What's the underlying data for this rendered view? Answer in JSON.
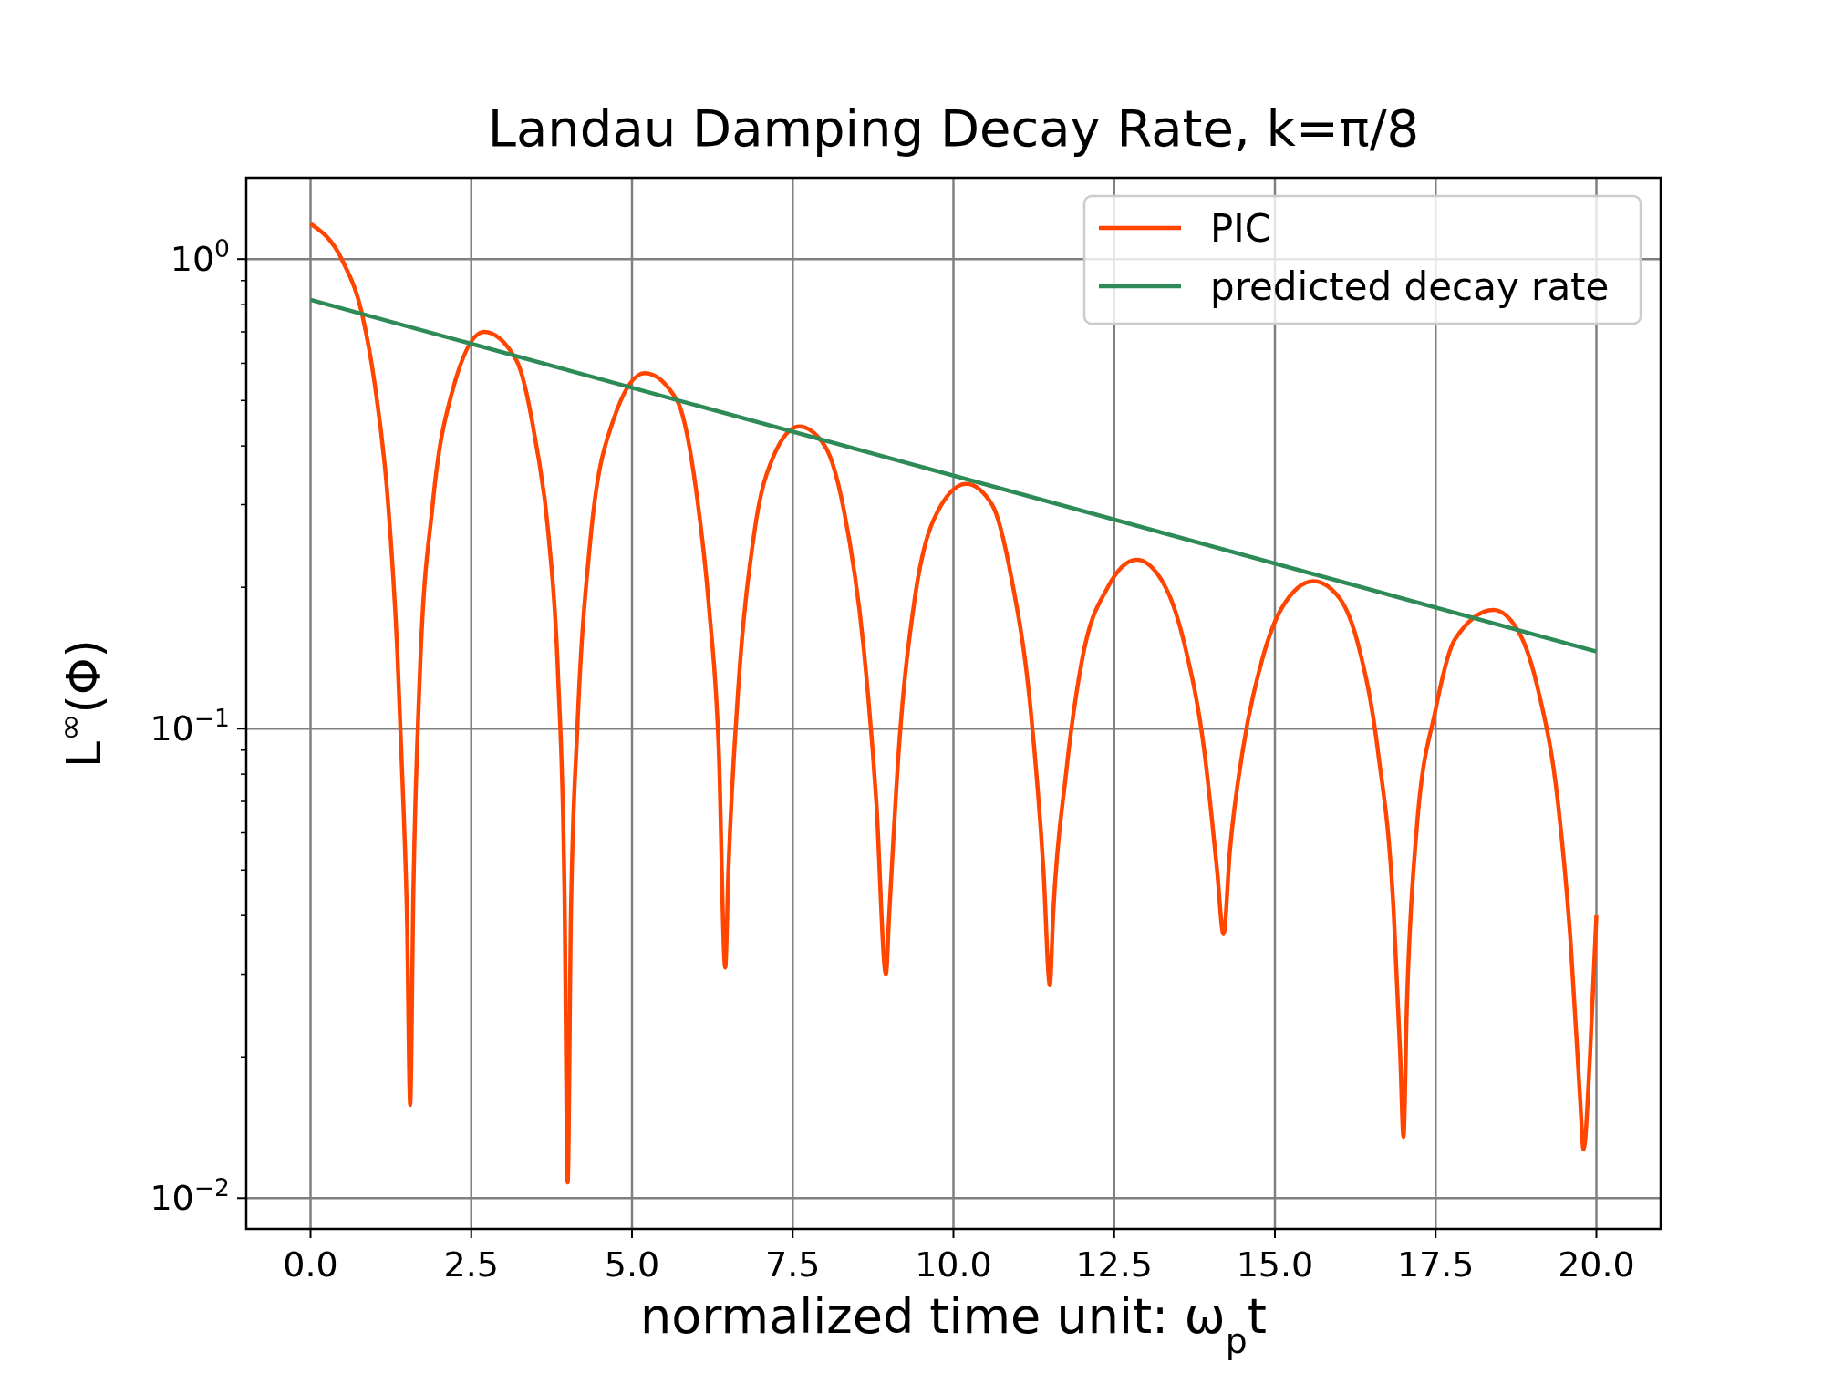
{
  "chart_data": {
    "type": "line",
    "title": "Landau Damping Decay Rate, k=π/8",
    "xlabel": "normalized time unit: ω$_{p}$t",
    "ylabel": "L$^{∞}$(Φ)",
    "log": "y",
    "grid": true,
    "legend": "top right",
    "line_style": "solid",
    "marker": "none",
    "xlim": [
      -1,
      21
    ],
    "xticks": [
      {
        "value": 0,
        "label": "0.0"
      },
      {
        "value": 2.5,
        "label": "2.5"
      },
      {
        "value": 5,
        "label": "5.0"
      },
      {
        "value": 7.5,
        "label": "7.5"
      },
      {
        "value": 10,
        "label": "10.0"
      },
      {
        "value": 12.5,
        "label": "12.5"
      },
      {
        "value": 15,
        "label": "15.0"
      },
      {
        "value": 17.5,
        "label": "17.5"
      },
      {
        "value": 20,
        "label": "20.0"
      }
    ],
    "ylim": [
      0.0086,
      1.49
    ],
    "yticks": [
      {
        "value": 0.01,
        "label": "10$^{−2}$"
      },
      {
        "value": 0.02,
        "label": null
      },
      {
        "value": 0.03,
        "label": null
      },
      {
        "value": 0.04,
        "label": null
      },
      {
        "value": 0.05,
        "label": null
      },
      {
        "value": 0.06,
        "label": null
      },
      {
        "value": 0.07,
        "label": null
      },
      {
        "value": 0.08,
        "label": null
      },
      {
        "value": 0.09,
        "label": null
      },
      {
        "value": 0.1,
        "label": "10$^{−1}$"
      },
      {
        "value": 0.2,
        "label": null
      },
      {
        "value": 0.3,
        "label": null
      },
      {
        "value": 0.4,
        "label": null
      },
      {
        "value": 0.5,
        "label": null
      },
      {
        "value": 0.6,
        "label": null
      },
      {
        "value": 0.7,
        "label": null
      },
      {
        "value": 0.8,
        "label": null
      },
      {
        "value": 0.9,
        "label": null
      },
      {
        "value": 1,
        "label": "10$^{0}$"
      }
    ],
    "series": [
      {
        "name": "PIC",
        "color": "#ff4500",
        "x": [
          0,
          0.5,
          0.8,
          1.0,
          1.2,
          1.35,
          1.45,
          1.5,
          1.55,
          1.6,
          1.7,
          1.9,
          2.2,
          2.7,
          3.2,
          3.5,
          3.7,
          3.85,
          3.95,
          4.0,
          4.05,
          4.15,
          4.35,
          4.7,
          5.2,
          5.7,
          6.0,
          6.2,
          6.35,
          6.45,
          6.5,
          6.65,
          6.9,
          7.2,
          7.6,
          8.0,
          8.3,
          8.6,
          8.8,
          8.95,
          9.0,
          9.15,
          9.4,
          9.7,
          10.2,
          10.6,
          10.9,
          11.2,
          11.4,
          11.5,
          11.55,
          11.75,
          12.0,
          12.4,
          12.85,
          13.3,
          13.6,
          13.9,
          14.1,
          14.2,
          14.3,
          14.5,
          14.8,
          15.1,
          15.6,
          16.0,
          16.3,
          16.6,
          16.85,
          16.95,
          17.0,
          17.05,
          17.2,
          17.5,
          17.8,
          18.4,
          18.8,
          19.1,
          19.4,
          19.6,
          19.75,
          19.8,
          19.9,
          20.0
        ],
        "values": [
          1.19,
          0.99,
          0.765,
          0.54,
          0.31,
          0.146,
          0.066,
          0.04,
          0.0158,
          0.045,
          0.13,
          0.3,
          0.52,
          0.7,
          0.61,
          0.41,
          0.26,
          0.13,
          0.045,
          0.0108,
          0.04,
          0.1,
          0.25,
          0.45,
          0.572,
          0.5,
          0.32,
          0.18,
          0.09,
          0.031,
          0.05,
          0.12,
          0.26,
          0.38,
          0.44,
          0.4,
          0.29,
          0.15,
          0.07,
          0.03,
          0.04,
          0.09,
          0.19,
          0.28,
          0.332,
          0.3,
          0.21,
          0.11,
          0.05,
          0.0284,
          0.04,
          0.08,
          0.14,
          0.2,
          0.229,
          0.2,
          0.15,
          0.09,
          0.05,
          0.0365,
          0.055,
          0.09,
          0.14,
          0.18,
          0.206,
          0.19,
          0.15,
          0.09,
          0.04,
          0.02,
          0.0135,
          0.025,
          0.06,
          0.11,
          0.155,
          0.179,
          0.16,
          0.12,
          0.07,
          0.035,
          0.016,
          0.0127,
          0.02,
          0.04
        ]
      },
      {
        "name": "predicted decay rate",
        "color": "#2e8b57",
        "x": [
          0,
          20
        ],
        "values": [
          0.819,
          0.146
        ]
      }
    ]
  }
}
